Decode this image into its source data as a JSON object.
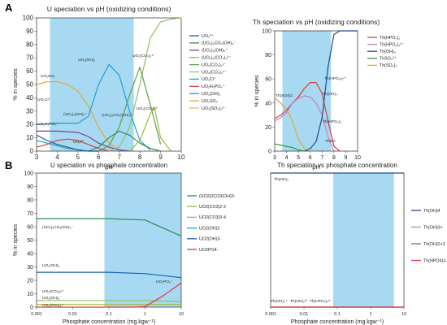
{
  "panel_labels": [
    "A",
    "B"
  ],
  "chart_data": [
    {
      "type": "line",
      "title": "U speciation vs pH (oxidizing conditions)",
      "xlabel": "pH",
      "ylabel": "% in species",
      "xlim": [
        3,
        10
      ],
      "ylim": [
        0,
        100
      ],
      "xticks": [
        "3",
        "4",
        "5",
        "6",
        "7",
        "8",
        "9",
        "10"
      ],
      "yticks": [
        "0",
        "10",
        "20",
        "30",
        "40",
        "50",
        "60",
        "70",
        "80",
        "90",
        "100"
      ],
      "shaded_x": [
        3.65,
        7.7
      ],
      "shade_color": "#a7daf2",
      "legend_position": "right",
      "legend": [
        {
          "label": "UO₂²⁺",
          "color": "#1f5faa"
        },
        {
          "label": "(UO₂)₂CO₃(OH)₃⁻",
          "color": "#2e8b57"
        },
        {
          "label": "(UO₂)₃(OH)₅⁺",
          "color": "#7b3f9e"
        },
        {
          "label": "(UO₂)₂(CO₃)₃⁶⁻",
          "color": "#9bbb3b"
        },
        {
          "label": "UO₂(CO₃)₂²⁻",
          "color": "#59a14f"
        },
        {
          "label": "UO₂(CO₃)₃⁴⁻",
          "color": "#8fc05a"
        },
        {
          "label": "UO₂Cl⁺",
          "color": "#2aa198"
        },
        {
          "label": "UO₂H₂PO₄⁺",
          "color": "#d94040"
        },
        {
          "label": "UO₂(OH)₂",
          "color": "#1f9bd7"
        },
        {
          "label": "UO₂SO₄",
          "color": "#e8a33d"
        },
        {
          "label": "UO₂(SO₄)₂²⁻",
          "color": "#f2b45a"
        }
      ],
      "annotations": [
        "UO₂SO₄",
        "UO₂(OH)₂",
        "UO₂(CO₃)₃⁴⁻",
        "(UO₂)₃(OH)₅⁺",
        "UO₂Cl⁺",
        "UO₂H₂PO₄⁺",
        "UO₂(CO₃)₂²⁻",
        "(UO₂)₂CO₃(OH)₃⁻",
        "UO₂²⁺"
      ],
      "series": [
        {
          "color": "#e8a33d",
          "x": [
            3,
            3.5,
            4,
            4.5,
            5,
            5.5,
            6,
            6.5,
            7
          ],
          "y": [
            50,
            52,
            52,
            50,
            45,
            34,
            18,
            6,
            1
          ]
        },
        {
          "color": "#1f9bd7",
          "x": [
            3,
            4,
            5,
            5.5,
            6,
            6.5,
            7,
            7.5,
            8,
            8.5
          ],
          "y": [
            20,
            21,
            21,
            26,
            50,
            65,
            57,
            30,
            8,
            1
          ]
        },
        {
          "color": "#7b3f9e",
          "x": [
            3,
            4,
            5,
            5.5,
            6,
            6.5,
            7,
            7.5
          ],
          "y": [
            15,
            15,
            14,
            11,
            6,
            3,
            1,
            0
          ]
        },
        {
          "color": "#8fc05a",
          "x": [
            6.5,
            7,
            7.5,
            8,
            8.5,
            9,
            9.5,
            10
          ],
          "y": [
            0,
            3,
            18,
            50,
            85,
            97,
            99,
            100
          ]
        },
        {
          "color": "#59a14f",
          "x": [
            6,
            6.5,
            7,
            7.5,
            8,
            8.5,
            9
          ],
          "y": [
            0,
            4,
            18,
            42,
            63,
            35,
            5
          ]
        },
        {
          "color": "#2e8b57",
          "x": [
            5.5,
            6,
            6.5,
            7,
            7.5,
            8,
            8.5,
            9
          ],
          "y": [
            0,
            3,
            10,
            15,
            12,
            6,
            2,
            0
          ]
        },
        {
          "color": "#2aa198",
          "x": [
            3,
            3.5,
            4,
            4.5,
            5,
            5.5,
            6
          ],
          "y": [
            8,
            6,
            4,
            2,
            1,
            0,
            0
          ]
        },
        {
          "color": "#d94040",
          "x": [
            3,
            3.5,
            4,
            4.5,
            5,
            5.5,
            6,
            6.5
          ],
          "y": [
            3,
            5,
            8,
            9,
            8,
            5,
            2,
            0
          ]
        },
        {
          "color": "#1f5faa",
          "x": [
            3,
            3.5,
            4,
            4.5,
            5,
            5.5,
            6
          ],
          "y": [
            12,
            8,
            5,
            3,
            1,
            0,
            0
          ]
        },
        {
          "color": "#9bbb3b",
          "x": [
            7.5,
            8,
            8.5,
            8.7,
            9,
            9.5
          ],
          "y": [
            0,
            8,
            28,
            33,
            10,
            0
          ]
        }
      ]
    },
    {
      "type": "line",
      "title": "Th speciation vs pH (oxidizing conditions)",
      "xlabel": "pH",
      "ylabel": "% in species",
      "xlim": [
        3,
        10
      ],
      "ylim": [
        0,
        100
      ],
      "xticks": [
        "3",
        "4",
        "5",
        "6",
        "7",
        "8",
        "9",
        "10"
      ],
      "yticks": [
        "0",
        "20",
        "40",
        "60",
        "80",
        "100"
      ],
      "shaded_x": [
        3.65,
        7.75
      ],
      "shade_color": "#a7daf2",
      "legend_position": "top-right",
      "legend": [
        {
          "label": "Th(HPO₄)₂",
          "color": "#e0393e"
        },
        {
          "label": "Th(HPO₄)₃²⁻",
          "color": "#c77cc3"
        },
        {
          "label": "Th(OH)₄",
          "color": "#1f4e8c"
        },
        {
          "label": "ThSO₄²⁺",
          "color": "#3a9a3a"
        },
        {
          "label": "Th(SO₄)₂",
          "color": "#e8a33d"
        }
      ],
      "annotations": [
        "Th(SO4)2",
        "Th(HPO₄)₃²⁻",
        "Th(OH)₄",
        "Th(HPO₄)₂",
        "ThSO"
      ],
      "series": [
        {
          "color": "#e8a33d",
          "x": [
            3,
            3.5,
            4,
            4.5,
            5,
            5.5,
            6
          ],
          "y": [
            44,
            40,
            35,
            25,
            10,
            2,
            0
          ]
        },
        {
          "color": "#e0393e",
          "x": [
            3,
            3.5,
            4,
            4.5,
            5,
            5.5,
            6,
            6.5,
            7,
            7.5,
            8,
            8.5
          ],
          "y": [
            27,
            30,
            34,
            40,
            45,
            52,
            57,
            57,
            48,
            25,
            4,
            0
          ]
        },
        {
          "color": "#c77cc3",
          "x": [
            3,
            3.5,
            4,
            4.5,
            5,
            5.5,
            6,
            6.5,
            7,
            7.5,
            8
          ],
          "y": [
            25,
            28,
            32,
            40,
            44,
            46,
            45,
            40,
            30,
            12,
            0
          ]
        },
        {
          "color": "#1f4e8c",
          "x": [
            5.5,
            6,
            6.5,
            7,
            7.5,
            8,
            8.5,
            9,
            10
          ],
          "y": [
            0,
            2,
            8,
            28,
            70,
            97,
            100,
            100,
            100
          ]
        },
        {
          "color": "#3a9a3a",
          "x": [
            3,
            3.5,
            4,
            4.5,
            5,
            5.5
          ],
          "y": [
            6,
            5,
            4,
            3,
            1,
            0
          ]
        }
      ]
    },
    {
      "type": "line",
      "title": "U speciation vs phosphate concentration",
      "xlabel": "Phosphate concentration (mg.kgw⁻¹)",
      "ylabel": "% in species",
      "xscale": "log",
      "xlim": [
        0.001,
        10
      ],
      "ylim": [
        0,
        100
      ],
      "xticks": [
        "0.001",
        "0.01",
        "0.1",
        "1",
        "10"
      ],
      "yticks": [
        "0",
        "10",
        "20",
        "30",
        "40",
        "50",
        "60",
        "70",
        "80",
        "90",
        "100"
      ],
      "shaded_x": [
        0.075,
        10
      ],
      "shade_color": "#a7daf2",
      "legend_position": "right",
      "legend": [
        {
          "label": "(UO2)2CO3(OH)3-",
          "color": "#2e8b57"
        },
        {
          "label": "UO2(CO3)2-2",
          "color": "#8fc05a"
        },
        {
          "label": "UO2(CO3)3-4",
          "color": "#9bbb3b"
        },
        {
          "label": "UO2(OH)2",
          "color": "#1f9bd7"
        },
        {
          "label": "UO2(OH)3-",
          "color": "#1f5faa"
        },
        {
          "label": "UO2PO4-",
          "color": "#e0393e"
        }
      ],
      "annotations": [
        "(UO₂)₂CO₃(OH)₃⁻",
        "UO₂(OH)₂",
        "UO₂(CO₃)₂²⁻",
        "UO₂(OH)₃⁻",
        "UO₂(CO₃)₃⁴⁻",
        "UO₂PO₄⁻"
      ],
      "series": [
        {
          "color": "#2e8b57",
          "x": [
            0.001,
            0.01,
            0.1,
            1,
            10
          ],
          "y": [
            66,
            66,
            66,
            65,
            53
          ]
        },
        {
          "color": "#1f5faa",
          "x": [
            0.001,
            0.01,
            0.1,
            1,
            10
          ],
          "y": [
            26,
            26,
            26,
            25,
            22
          ]
        },
        {
          "color": "#8fc05a",
          "x": [
            0.001,
            0.01,
            0.1,
            1,
            10
          ],
          "y": [
            5,
            5,
            5,
            5,
            4
          ]
        },
        {
          "color": "#9bbb3b",
          "x": [
            0.001,
            0.01,
            0.1,
            1,
            10
          ],
          "y": [
            2,
            2,
            2,
            2,
            2
          ]
        },
        {
          "color": "#e0393e",
          "x": [
            0.001,
            0.01,
            0.1,
            0.5,
            1,
            3,
            10
          ],
          "y": [
            0,
            0,
            0,
            0,
            0.5,
            8,
            18
          ]
        }
      ]
    },
    {
      "type": "line",
      "title": "Th speciation vs phosphate concentration",
      "xlabel": "Phosphate concentration (mg.kgw⁻¹)",
      "ylabel": "",
      "xscale": "log",
      "xlim": [
        0.001,
        10
      ],
      "ylim": [
        0,
        100
      ],
      "xticks": [
        "0.001",
        "0.01",
        "0.1",
        "1",
        "10"
      ],
      "shaded_x": [
        0.075,
        5
      ],
      "shade_color": "#a7daf2",
      "legend_position": "right",
      "legend": [
        {
          "label": "Th(OH)4",
          "color": "#1f4e8c"
        },
        {
          "label": "Th(OH)3+",
          "color": "#c77cc3"
        },
        {
          "label": "Th(OH)2+2",
          "color": "#3a9a3a"
        },
        {
          "label": "Th(HPO4)3-2",
          "color": "#e0393e"
        }
      ],
      "annotations": [
        "Th(OH)₄",
        "Th(OH)₃⁺",
        "Th(OH)₂²⁺",
        "Th(HPO₄)₃²⁻"
      ],
      "series": [
        {
          "color": "#1f4e8c",
          "x": [
            0.001,
            0.01,
            0.1,
            1,
            10
          ],
          "y": [
            100,
            100,
            100,
            100,
            100
          ]
        },
        {
          "color": "#c77cc3",
          "x": [
            0.001,
            0.01,
            0.1,
            1,
            10
          ],
          "y": [
            0,
            0,
            0,
            0,
            0
          ]
        },
        {
          "color": "#3a9a3a",
          "x": [
            0.001,
            0.01,
            0.1,
            1,
            10
          ],
          "y": [
            0,
            0,
            0,
            0,
            0
          ]
        },
        {
          "color": "#e0393e",
          "x": [
            0.001,
            0.01,
            0.1,
            1,
            10
          ],
          "y": [
            0,
            0,
            0,
            0,
            0
          ]
        }
      ]
    }
  ]
}
